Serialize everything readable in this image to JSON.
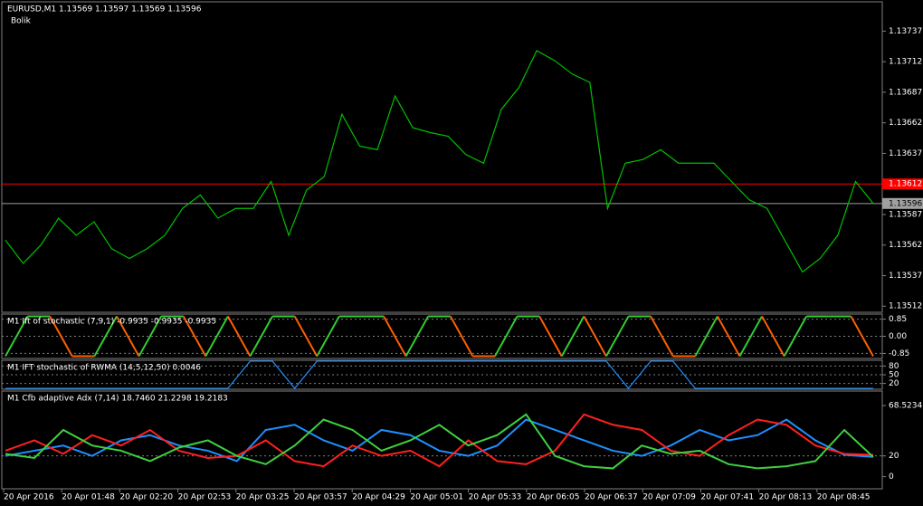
{
  "chart_data": [
    {
      "type": "line",
      "title": "EURUSD,M1  1.13569 1.13597 1.13569 1.13596",
      "subtitle": "Bolik",
      "color": "#00c000",
      "values": [
        1.13566,
        1.13547,
        1.13562,
        1.13584,
        1.1357,
        1.13581,
        1.13559,
        1.13551,
        1.13559,
        1.1357,
        1.13592,
        1.13603,
        1.13584,
        1.13592,
        1.13592,
        1.13614,
        1.1357,
        1.13607,
        1.13618,
        1.13669,
        1.13643,
        1.1364,
        1.13684,
        1.13658,
        1.13654,
        1.13651,
        1.13636,
        1.13629,
        1.13673,
        1.13691,
        1.13721,
        1.13713,
        1.13702,
        1.13695,
        1.13592,
        1.13629,
        1.13632,
        1.1364,
        1.13629,
        1.13629,
        1.13629,
        1.13614,
        1.13599,
        1.13592,
        1.13566,
        1.1354,
        1.13551,
        1.1357,
        1.13614,
        1.13596
      ],
      "ylim": [
        1.13507,
        1.13761
      ],
      "yticks": [
        1.13737,
        1.13712,
        1.13687,
        1.13662,
        1.13637,
        1.13587,
        1.13562,
        1.13537,
        1.13512
      ],
      "price_lines": [
        {
          "value": 1.13612,
          "color": "#ff0000"
        },
        {
          "value": 1.13596,
          "color": "#a0a0a0"
        }
      ]
    },
    {
      "type": "line",
      "title": "M1 Ift of stochastic (7,9,1) -0.9935 -0.9935 -0.9935",
      "color": "#32cd32",
      "color_low": "#ff6000",
      "values": [
        -0.99,
        0.99,
        0.99,
        -0.99,
        -0.99,
        0.99,
        -0.99,
        0.99,
        0.99,
        -0.99,
        0.99,
        -0.99,
        0.99,
        0.99,
        -0.99,
        0.99,
        0.99,
        0.99,
        -0.99,
        0.99,
        0.99,
        -0.99,
        -0.99,
        0.99,
        0.99,
        -0.99,
        0.99,
        -0.99,
        0.99,
        0.99,
        -0.99,
        -0.99,
        0.99,
        -0.99,
        0.99,
        -0.99,
        0.99,
        0.99,
        0.99,
        -0.99
      ],
      "ylim": [
        -1.1,
        1.1
      ],
      "yticks": [
        0.85,
        {
          "value": 0,
          "label": "0.00"
        },
        -0.85
      ],
      "grid": true
    },
    {
      "type": "line",
      "title": "M1 IFT stochastic of RWMA (14,5,12,50) 0.0046",
      "color": "#1e90ff",
      "values": [
        3,
        3,
        3,
        3,
        3,
        3,
        3,
        3,
        3,
        3,
        3,
        97,
        97,
        3,
        97,
        97,
        97,
        97,
        97,
        97,
        97,
        97,
        97,
        97,
        97,
        97,
        97,
        97,
        3,
        97,
        97,
        3,
        3,
        3,
        3,
        3,
        3,
        3,
        3,
        3
      ],
      "ylim": [
        0,
        100
      ],
      "yticks": [
        80,
        50,
        20
      ],
      "grid": true
    },
    {
      "type": "line",
      "title": "M1 Cfb adaptive Adx (7,14) 18.7460 21.2298 19.2183",
      "series": [
        {
          "color": "#1e90ff",
          "values": [
            20,
            25,
            30,
            20,
            35,
            40,
            30,
            25,
            15,
            45,
            50,
            35,
            25,
            45,
            40,
            25,
            20,
            30,
            55,
            45,
            35,
            25,
            20,
            30,
            45,
            35,
            40,
            55,
            35,
            21,
            19
          ]
        },
        {
          "color": "#ff2020",
          "values": [
            25,
            35,
            22,
            40,
            30,
            45,
            25,
            18,
            20,
            35,
            15,
            10,
            30,
            20,
            25,
            10,
            35,
            15,
            12,
            25,
            60,
            50,
            45,
            25,
            20,
            40,
            55,
            50,
            30,
            22,
            21
          ]
        },
        {
          "color": "#40d040",
          "values": [
            22,
            18,
            45,
            30,
            25,
            15,
            28,
            35,
            20,
            12,
            30,
            55,
            45,
            25,
            35,
            50,
            30,
            40,
            60,
            20,
            10,
            8,
            30,
            22,
            25,
            12,
            8,
            10,
            15,
            45,
            19
          ]
        }
      ],
      "ylim": [
        -11.7,
        82.5
      ],
      "yticks": [
        68.5234,
        20,
        0
      ],
      "levels": [
        20
      ]
    }
  ],
  "time_labels": [
    "20 Apr 2016",
    "20 Apr 01:48",
    "20 Apr 02:20",
    "20 Apr 02:53",
    "20 Apr 03:25",
    "20 Apr 03:57",
    "20 Apr 04:29",
    "20 Apr 05:01",
    "20 Apr 05:33",
    "20 Apr 06:05",
    "20 Apr 06:37",
    "20 Apr 07:09",
    "20 Apr 07:41",
    "20 Apr 08:13",
    "20 Apr 08:45"
  ]
}
